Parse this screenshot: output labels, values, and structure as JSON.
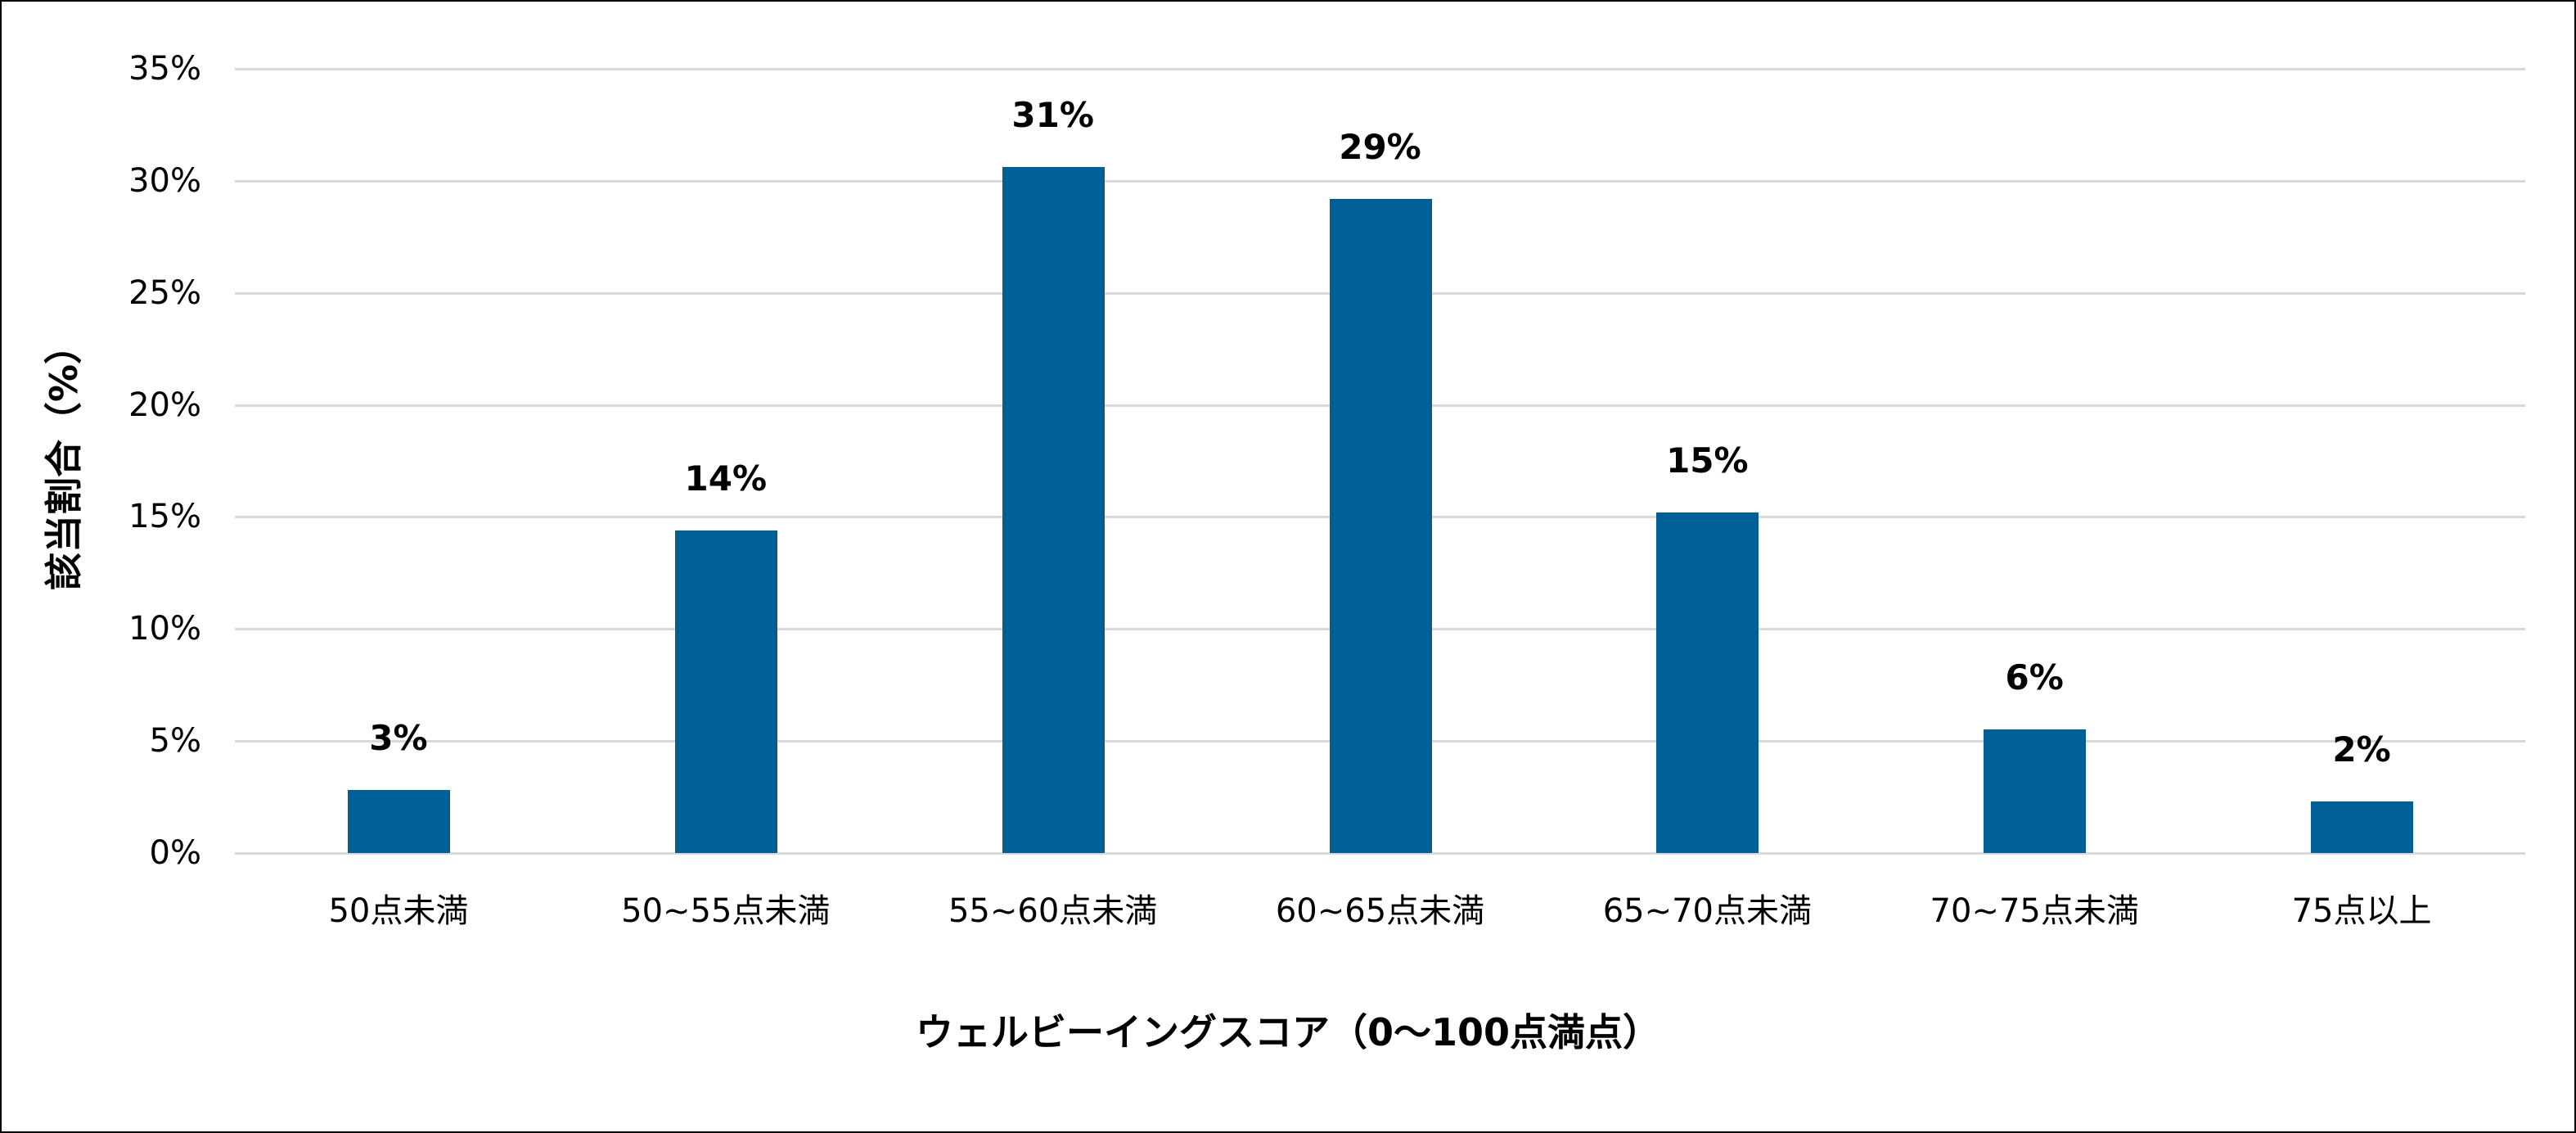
{
  "chart_data": {
    "type": "bar",
    "title": "",
    "xlabel": "ウェルビーイングスコア（0〜100点満点）",
    "ylabel": "該当割合（%）",
    "categories": [
      "50点未満",
      "50~55点未満",
      "55~60点未満",
      "60~65点未満",
      "65~70点未満",
      "70~75点未満",
      "75点以上"
    ],
    "values": [
      2.8,
      14.4,
      30.6,
      29.2,
      15.2,
      5.5,
      2.3
    ],
    "data_labels": [
      "3%",
      "14%",
      "31%",
      "29%",
      "15%",
      "6%",
      "2%"
    ],
    "ylim": [
      0,
      35
    ],
    "yticks": [
      "0%",
      "5%",
      "10%",
      "15%",
      "20%",
      "25%",
      "30%",
      "35%"
    ],
    "grid": true,
    "legend": "none",
    "bar_color": "#005f96"
  }
}
